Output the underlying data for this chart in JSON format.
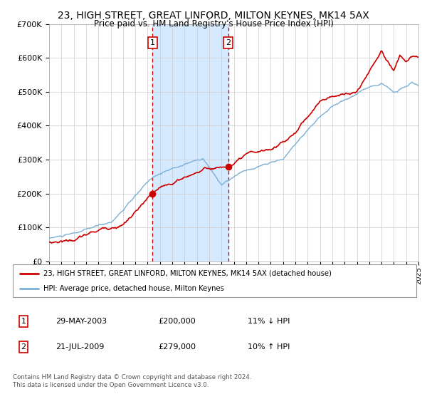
{
  "title": "23, HIGH STREET, GREAT LINFORD, MILTON KEYNES, MK14 5AX",
  "subtitle": "Price paid vs. HM Land Registry's House Price Index (HPI)",
  "title_fontsize": 10,
  "subtitle_fontsize": 8.5,
  "red_color": "#cc0000",
  "blue_color": "#7bafd4",
  "bg_color": "#ddeeff",
  "grid_color": "#cccccc",
  "sale1_year": 2003.41,
  "sale1_price": 200000,
  "sale1_label": "1",
  "sale2_year": 2009.54,
  "sale2_price": 279000,
  "sale2_label": "2",
  "ylim": [
    0,
    700000
  ],
  "xlim_start": 1995,
  "xlim_end": 2025,
  "legend_red": "23, HIGH STREET, GREAT LINFORD, MILTON KEYNES, MK14 5AX (detached house)",
  "legend_blue": "HPI: Average price, detached house, Milton Keynes",
  "table_row1_date": "29-MAY-2003",
  "table_row1_price": "£200,000",
  "table_row1_hpi": "11% ↓ HPI",
  "table_row2_date": "21-JUL-2009",
  "table_row2_price": "£279,000",
  "table_row2_hpi": "10% ↑ HPI",
  "footer": "Contains HM Land Registry data © Crown copyright and database right 2024.\nThis data is licensed under the Open Government Licence v3.0."
}
